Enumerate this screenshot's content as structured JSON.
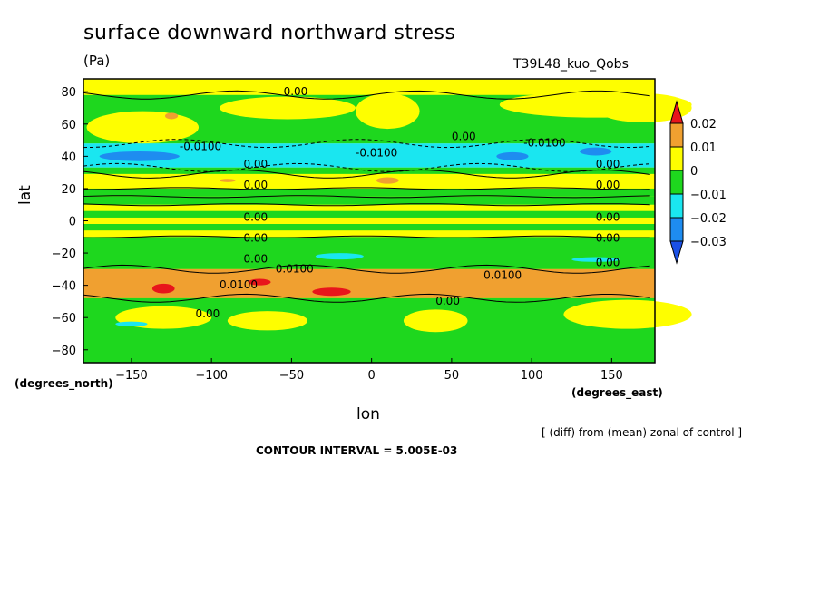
{
  "title": "surface downward northward stress",
  "units": "(Pa)",
  "run_name": "T39L48_kuo_Qobs",
  "xlabel": "lon",
  "ylabel": "lat",
  "x_unit_label": "(degrees_east)",
  "y_unit_label": "(degrees_north)",
  "reference_note": "[ (diff) from (mean) zonal of control ]",
  "contour_interval": "CONTOUR INTERVAL = 5.005E-03",
  "chart_data": {
    "type": "heatmap",
    "x_ticks": [
      -150,
      -100,
      -50,
      0,
      50,
      100,
      150
    ],
    "y_ticks": [
      80,
      60,
      40,
      20,
      0,
      -20,
      -40,
      -60,
      -80
    ],
    "xlim": [
      -180,
      177
    ],
    "ylim": [
      -88,
      88
    ],
    "colorbar": {
      "labels": [
        "0.02",
        "0.01",
        "0",
        "-0.01",
        "-0.02",
        "-0.03"
      ],
      "colors": [
        "#e8151b",
        "#f0a030",
        "#fefe00",
        "#1ed71e",
        "#1ae6f0",
        "#1e8cf0",
        "#1a50e6"
      ]
    },
    "zonal_bands": [
      {
        "lat_range": [
          78,
          88
        ],
        "level": "0"
      },
      {
        "lat_range": [
          48,
          78
        ],
        "level": "0 to -0.01"
      },
      {
        "lat_range": [
          33,
          48
        ],
        "level": "-0.01 to -0.02"
      },
      {
        "lat_range": [
          29,
          33
        ],
        "level": "0 to -0.01"
      },
      {
        "lat_range": [
          20,
          29
        ],
        "level": "0 to 0.01"
      },
      {
        "lat_range": [
          15,
          20
        ],
        "level": "0 to -0.01"
      },
      {
        "lat_range": [
          -8,
          15
        ],
        "level": "mixed -0.01 to 0"
      },
      {
        "lat_range": [
          -30,
          -8
        ],
        "level": "0 to -0.01"
      },
      {
        "lat_range": [
          -48,
          -30
        ],
        "level": "0.01 to 0.02"
      },
      {
        "lat_range": [
          -88,
          -48
        ],
        "level": "0 to -0.01"
      }
    ],
    "contour_labels": [
      "0.00",
      "-0.0100",
      "0.0100"
    ]
  }
}
